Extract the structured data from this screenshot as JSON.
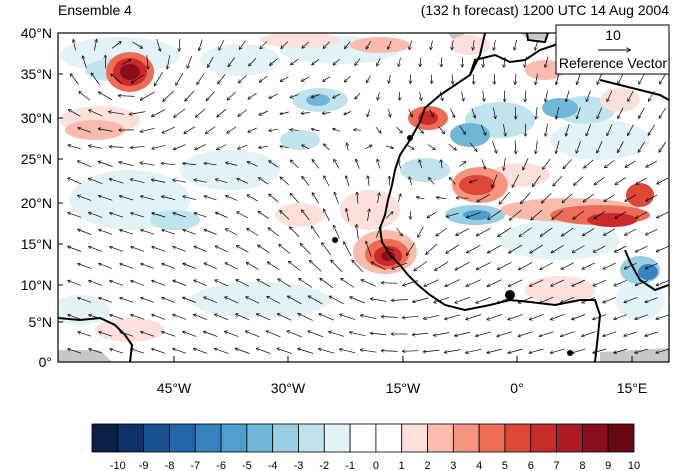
{
  "header": {
    "left_title": "Ensemble 4",
    "right_title": "(132 h forecast) 1200 UTC 14 Aug 2004"
  },
  "map": {
    "lat_labels": [
      "40°N",
      "35°N",
      "30°N",
      "25°N",
      "20°N",
      "15°N",
      "10°N",
      "5°N",
      "0°"
    ],
    "lon_labels": [
      "45°W",
      "30°W",
      "15°W",
      "0°",
      "15°E"
    ],
    "reference_vector": {
      "value": "10",
      "label": "Reference Vector"
    }
  },
  "colorbar": {
    "labels": [
      "-10",
      "-9",
      "-8",
      "-7",
      "-6",
      "-5",
      "-4",
      "-3",
      "-2",
      "-1",
      "0",
      "1",
      "2",
      "3",
      "4",
      "5",
      "6",
      "7",
      "8",
      "9",
      "10"
    ],
    "colors": [
      "#0b2147",
      "#0d3168",
      "#184f8f",
      "#2367aa",
      "#3683bf",
      "#4f9dcc",
      "#70b6d7",
      "#98cfe2",
      "#bfe4ee",
      "#e2f3f8",
      "#ffffff",
      "#ffffff",
      "#fde0dc",
      "#f9bcac",
      "#f4967f",
      "#ec6c55",
      "#de4636",
      "#c92a2a",
      "#ad1a24",
      "#8a0f1c",
      "#670813"
    ]
  }
}
